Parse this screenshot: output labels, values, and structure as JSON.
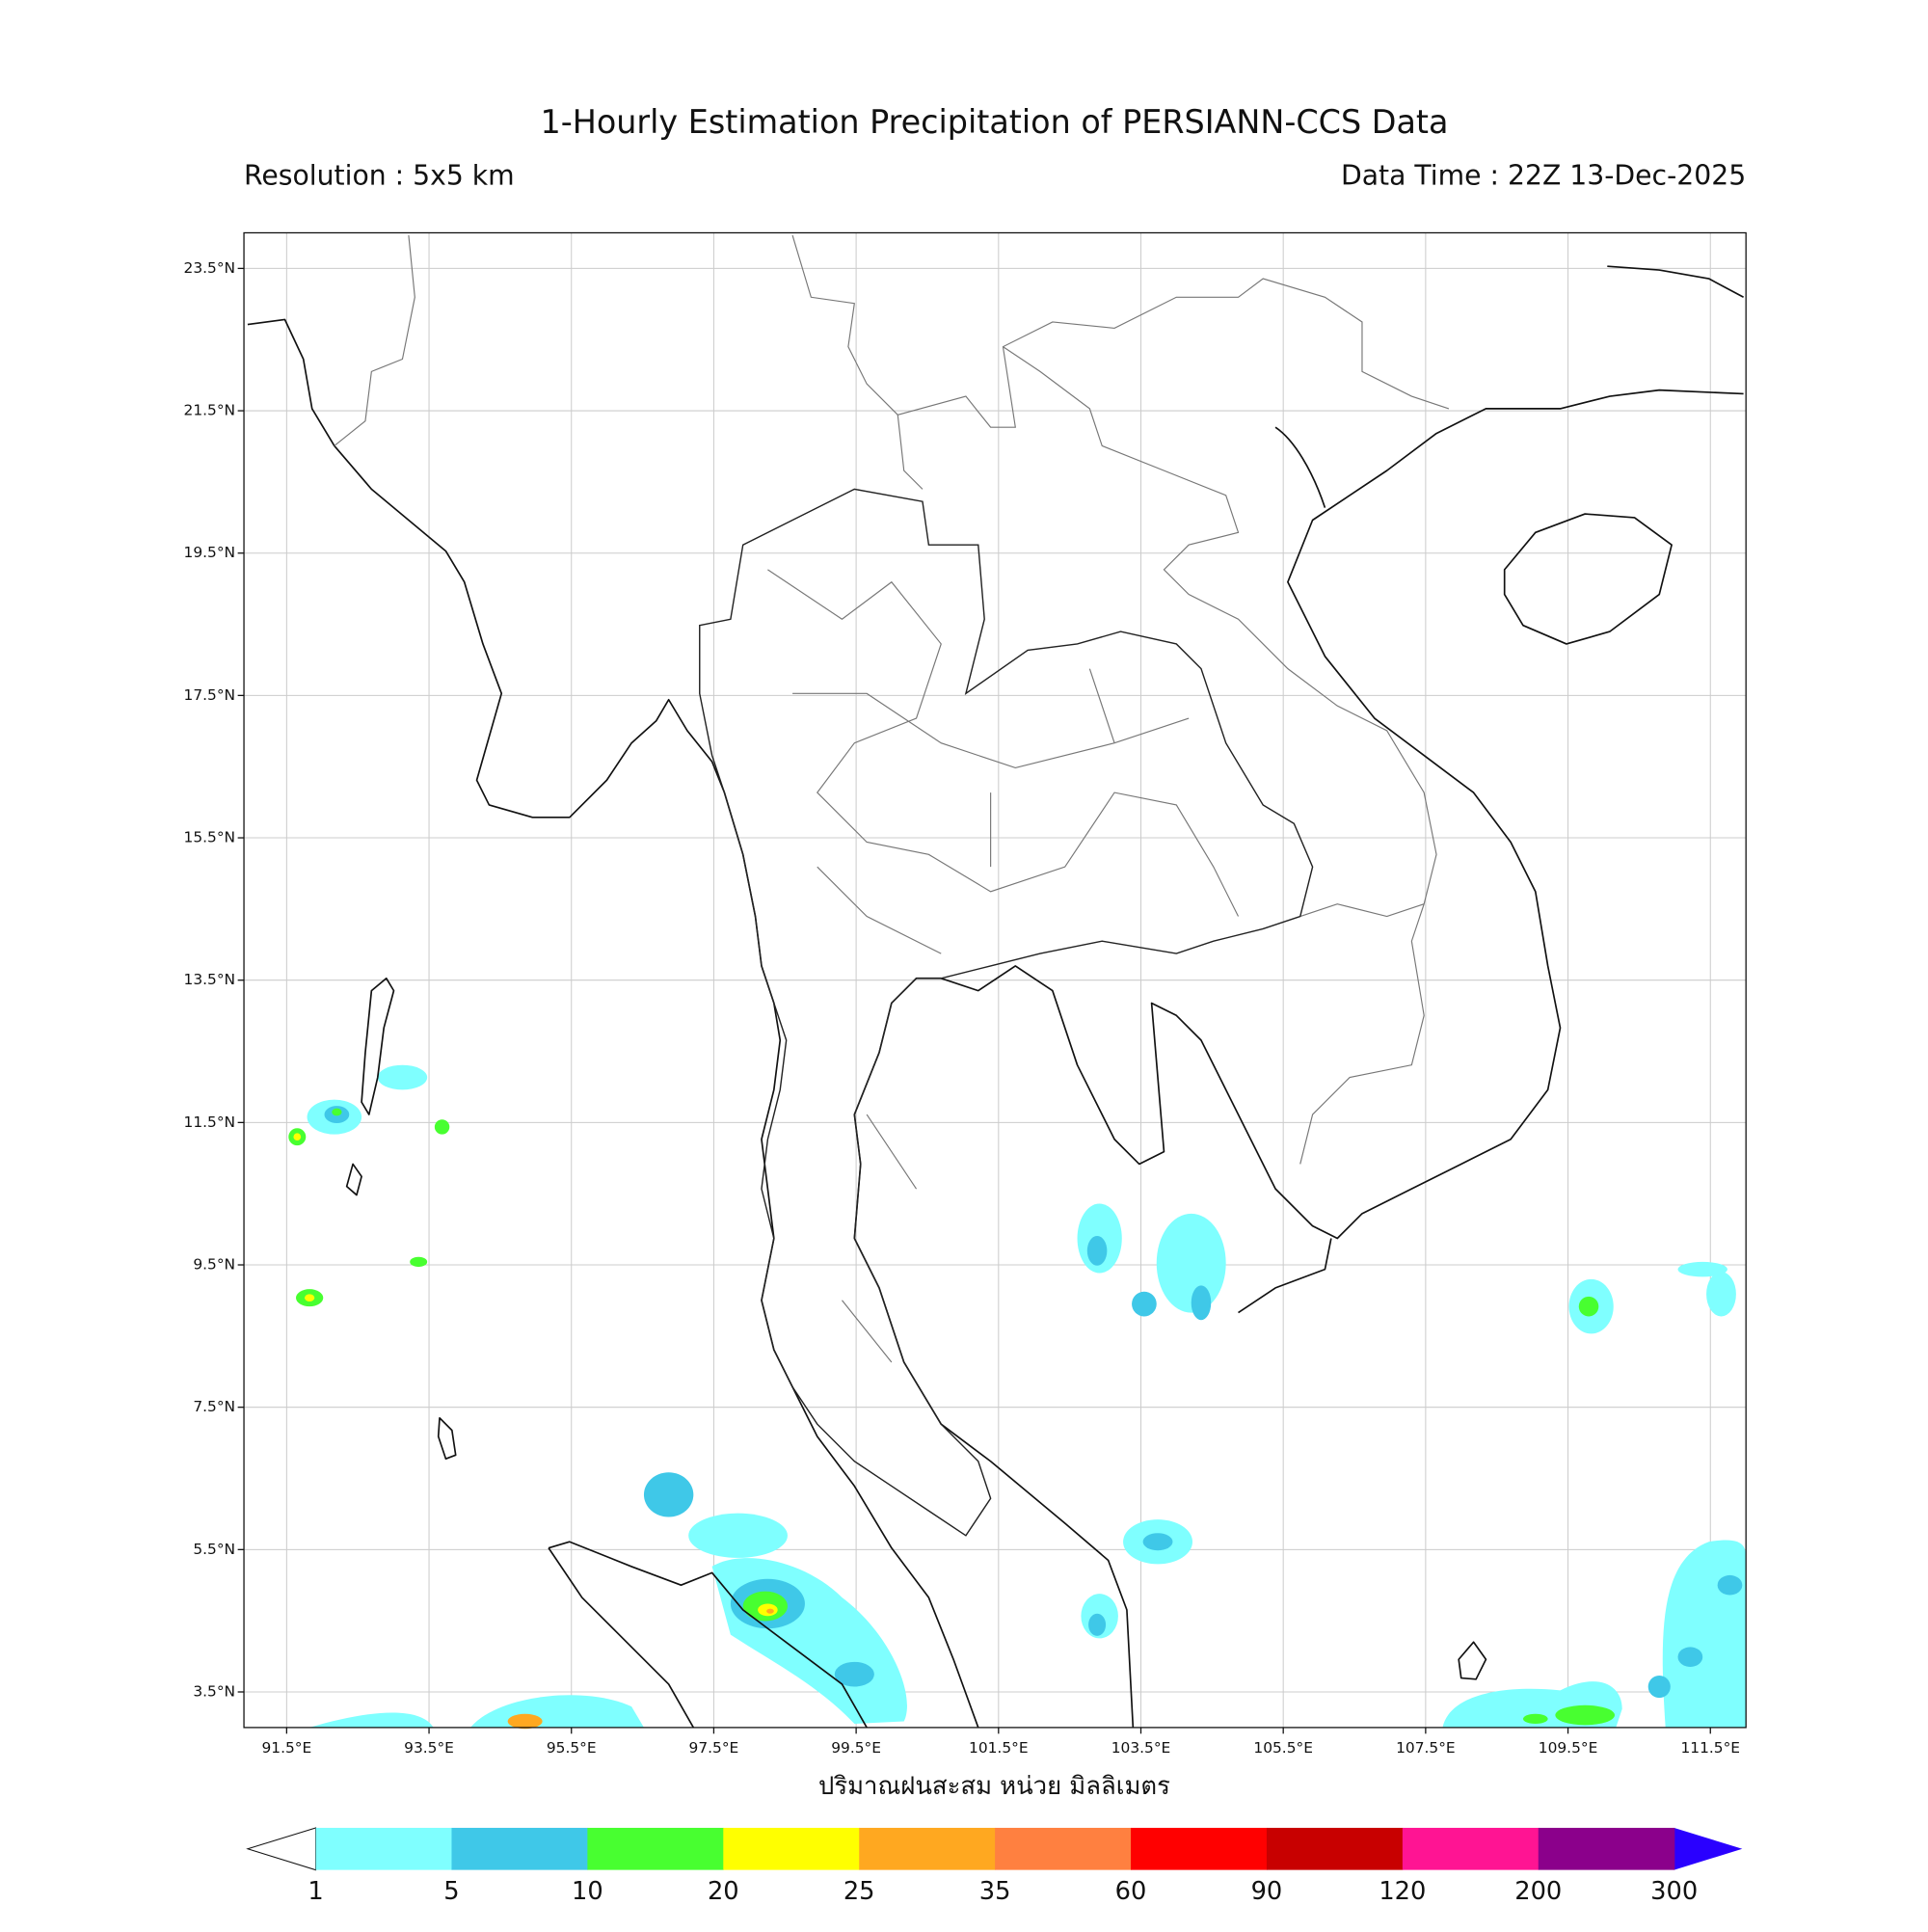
{
  "header": {
    "title": "1-Hourly Estimation Precipitation of PERSIANN-CCS Data",
    "resolution": "Resolution : 5x5 km",
    "data_time": "Data Time : 22Z 13-Dec-2025"
  },
  "map": {
    "lon_range": [
      90.9,
      112.0
    ],
    "lat_range": [
      3.0,
      24.0
    ],
    "lat_ticks": [
      {
        "value": 23.5,
        "label": "23.5°N"
      },
      {
        "value": 21.5,
        "label": "21.5°N"
      },
      {
        "value": 19.5,
        "label": "19.5°N"
      },
      {
        "value": 17.5,
        "label": "17.5°N"
      },
      {
        "value": 15.5,
        "label": "15.5°N"
      },
      {
        "value": 13.5,
        "label": "13.5°N"
      },
      {
        "value": 11.5,
        "label": "11.5°N"
      },
      {
        "value": 9.5,
        "label": "9.5°N"
      },
      {
        "value": 7.5,
        "label": "7.5°N"
      },
      {
        "value": 5.5,
        "label": "5.5°N"
      },
      {
        "value": 3.5,
        "label": "3.5°N"
      }
    ],
    "lon_ticks": [
      {
        "value": 91.5,
        "label": "91.5°E"
      },
      {
        "value": 93.5,
        "label": "93.5°E"
      },
      {
        "value": 95.5,
        "label": "95.5°E"
      },
      {
        "value": 97.5,
        "label": "97.5°E"
      },
      {
        "value": 99.5,
        "label": "99.5°E"
      },
      {
        "value": 101.5,
        "label": "101.5°E"
      },
      {
        "value": 103.5,
        "label": "103.5°E"
      },
      {
        "value": 105.5,
        "label": "105.5°E"
      },
      {
        "value": 107.5,
        "label": "107.5°E"
      },
      {
        "value": 109.5,
        "label": "109.5°E"
      },
      {
        "value": 111.5,
        "label": "111.5°E"
      }
    ],
    "x_label": "ปริมาณฝนสะสม หน่วย มิลลิเมตร"
  },
  "colorbar": {
    "bounds": [
      1,
      5,
      10,
      20,
      25,
      35,
      60,
      90,
      120,
      200,
      300
    ],
    "colors": [
      "#7fffff",
      "#3fc8e8",
      "#48ff30",
      "#ffff00",
      "#ffa820",
      "#ff8040",
      "#ff0000",
      "#c80000",
      "#ff1493",
      "#8b008b"
    ],
    "under_color": "#ffffff",
    "over_color": "#2a00ff"
  }
}
